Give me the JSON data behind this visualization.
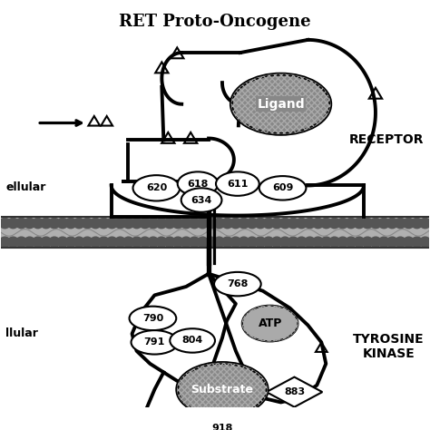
{
  "title": "RET Proto-Oncogene",
  "title_fontsize": 13,
  "title_fontweight": "bold",
  "bg_color": "#ffffff",
  "line_color": "#000000",
  "line_width": 2.8,
  "receptor_label": "RECEPTOR",
  "tyrosine_label": "TYROSINE\nKINASE",
  "extracellular_label": "ellular",
  "intracellular_label": "llular",
  "ligand_label": "Ligand",
  "atp_label": "ATP",
  "substrate_label": "Substrate",
  "figsize": [
    4.74,
    4.74
  ],
  "dpi": 100
}
